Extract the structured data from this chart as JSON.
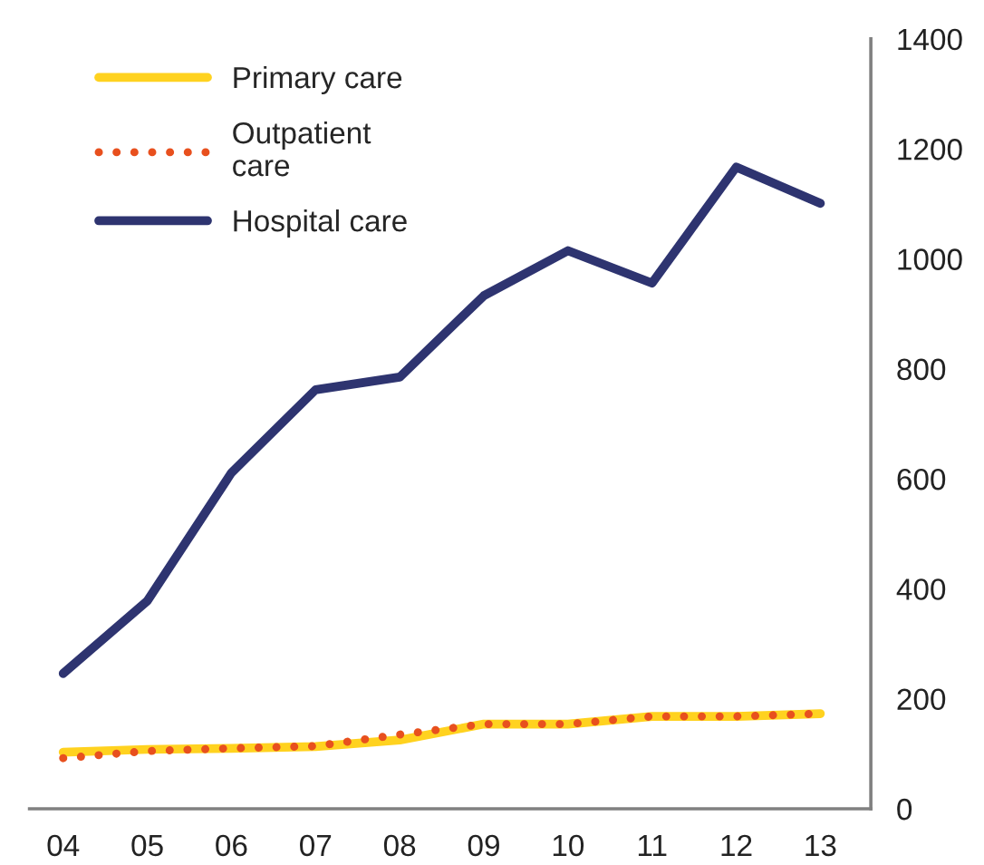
{
  "chart_data": {
    "type": "line",
    "categories": [
      "04",
      "05",
      "06",
      "07",
      "08",
      "09",
      "10",
      "11",
      "12",
      "13"
    ],
    "series": [
      {
        "name": "Primary care",
        "color": "#ffd21f",
        "line_style": "solid",
        "values": [
          103,
          108,
          110,
          113,
          125,
          154,
          154,
          168,
          168,
          173
        ]
      },
      {
        "name": "Outpatient\ncare",
        "color": "#e8501e",
        "line_style": "dotted",
        "values": [
          92,
          105,
          110,
          114,
          135,
          154,
          154,
          168,
          168,
          173
        ]
      },
      {
        "name": "Hospital care",
        "color": "#2e3470",
        "line_style": "solid",
        "values": [
          246,
          378,
          611,
          762,
          785,
          933,
          1015,
          956,
          1167,
          1101
        ]
      }
    ],
    "ylim": [
      0,
      1400
    ],
    "yticks": [
      0,
      200,
      400,
      600,
      800,
      1000,
      1200,
      1400
    ],
    "grid": false,
    "legend": "top left",
    "marker": "none"
  }
}
